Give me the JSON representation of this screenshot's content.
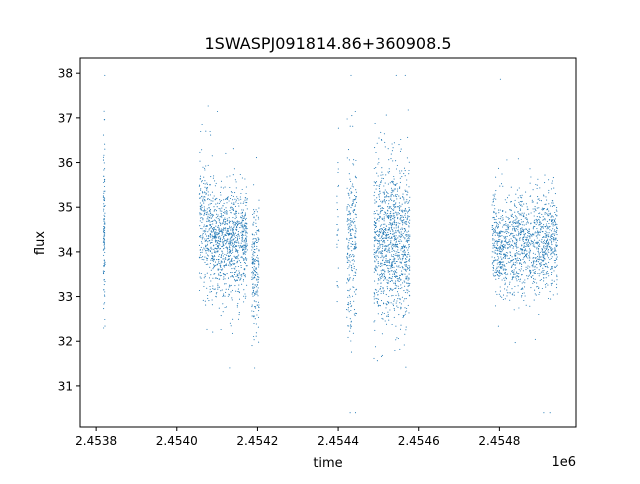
{
  "chart_data": {
    "type": "scatter",
    "title": "1SWASPJ091814.86+360908.5",
    "xlabel": "time",
    "ylabel": "flux",
    "x_offset_label": "1e6",
    "xlim": [
      2453760,
      2454990
    ],
    "ylim": [
      30.08,
      38.34
    ],
    "x_ticks": [
      2453800,
      2454000,
      2454200,
      2454400,
      2454600,
      2454800
    ],
    "x_tick_labels": [
      "2.4538",
      "2.4540",
      "2.4542",
      "2.4544",
      "2.4546",
      "2.4548"
    ],
    "y_ticks": [
      31,
      32,
      33,
      34,
      35,
      36,
      37,
      38
    ],
    "y_tick_labels": [
      "31",
      "32",
      "33",
      "34",
      "35",
      "36",
      "37",
      "38"
    ],
    "grid": false,
    "marker_color": "#1f77b4",
    "series": [
      {
        "name": "flux",
        "note": "observing seasons summarised as clusters of points (time range, mean flux, scatter, count)",
        "clusters": [
          {
            "t0": 2453818,
            "t1": 2453822,
            "mean": 34.6,
            "sd": 1.0,
            "n": 120
          },
          {
            "t0": 2454056,
            "t1": 2454086,
            "mean": 34.6,
            "sd": 0.7,
            "n": 260
          },
          {
            "t0": 2454086,
            "t1": 2454175,
            "mean": 34.2,
            "sd": 0.6,
            "n": 900
          },
          {
            "t0": 2454186,
            "t1": 2454204,
            "mean": 33.6,
            "sd": 0.7,
            "n": 200
          },
          {
            "t0": 2454397,
            "t1": 2454401,
            "mean": 34.5,
            "sd": 0.9,
            "n": 25
          },
          {
            "t0": 2454421,
            "t1": 2454446,
            "mean": 34.3,
            "sd": 1.0,
            "n": 250
          },
          {
            "t0": 2454489,
            "t1": 2454578,
            "mean": 34.2,
            "sd": 0.9,
            "n": 1100
          },
          {
            "t0": 2454782,
            "t1": 2454944,
            "mean": 34.2,
            "sd": 0.55,
            "n": 1300
          }
        ]
      }
    ]
  }
}
